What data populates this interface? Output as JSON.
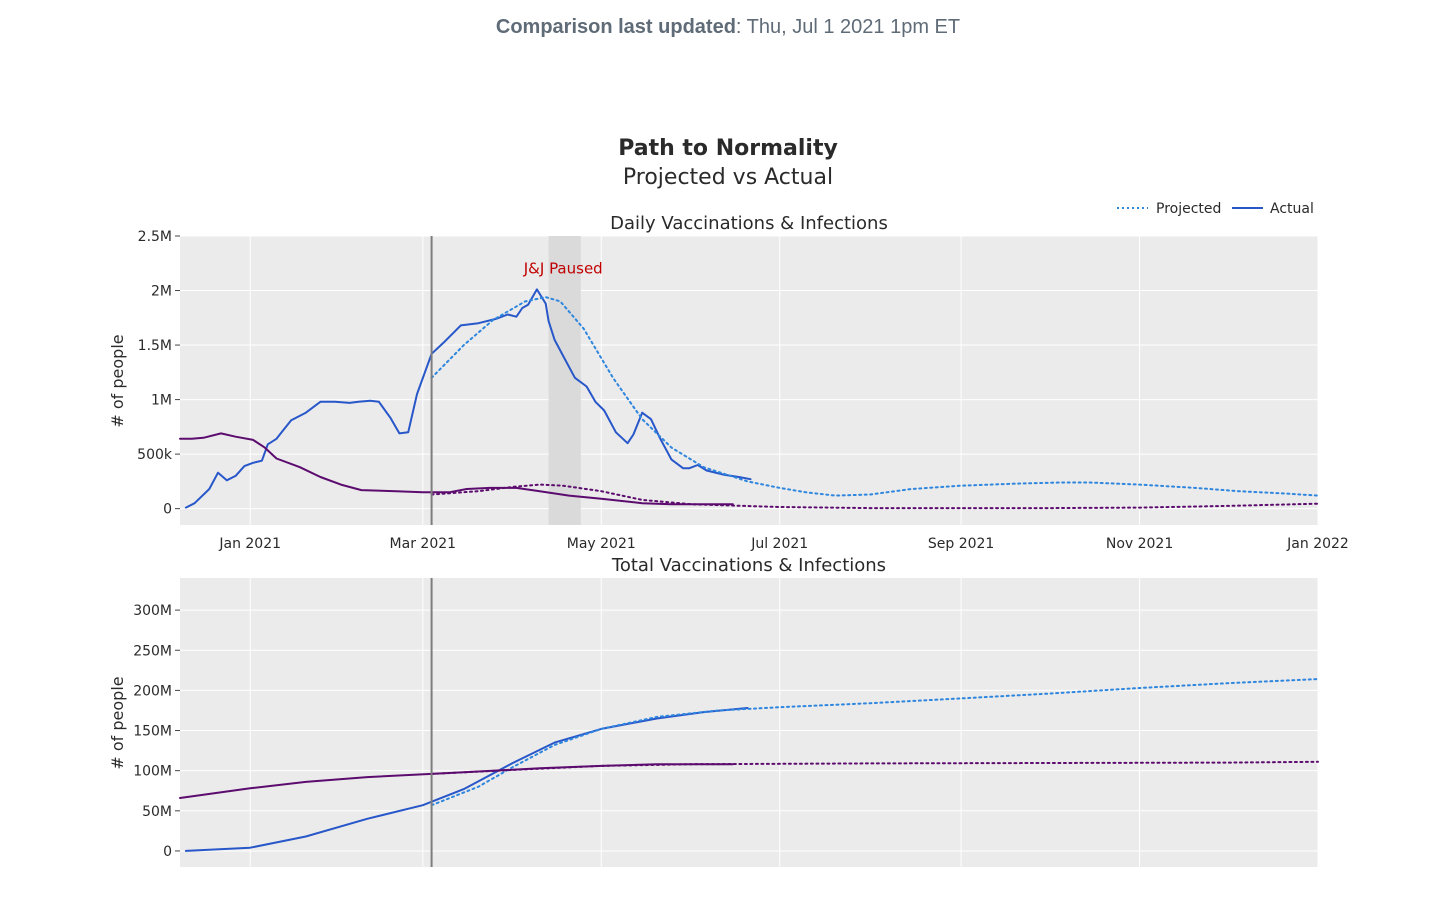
{
  "header": {
    "updated_label": "Comparison last updated",
    "updated_value": ": Thu, Jul 1 2021 1pm ET"
  },
  "figure": {
    "title": "Path to Normality",
    "subtitle": "Projected vs Actual"
  },
  "legend": {
    "projected": "Projected",
    "actual": "Actual"
  },
  "colors": {
    "vacc_actual": "#2857c9",
    "vacc_projected": "#2e86de",
    "infections": "#5c0b6e",
    "plot_bg": "#ebebeb",
    "grid": "#ffffff",
    "annotation": "#c00000"
  },
  "chart_data": [
    {
      "type": "line",
      "title": "Daily Vaccinations & Infections",
      "ylabel": "# of people",
      "xlim": [
        "2020-12-08",
        "2022-01-01"
      ],
      "ylim": [
        -150000,
        2500000
      ],
      "yticks": [
        0,
        500000,
        1000000,
        1500000,
        2000000,
        2500000
      ],
      "ytick_labels": [
        "0",
        "500k",
        "1M",
        "1.5M",
        "2M",
        "2.5M"
      ],
      "xticks": [
        "2021-01-01",
        "2021-03-01",
        "2021-05-01",
        "2021-07-01",
        "2021-09-01",
        "2021-11-01",
        "2022-01-01"
      ],
      "xtick_labels": [
        "Jan 2021",
        "Mar 2021",
        "May 2021",
        "Jul 2021",
        "Sep 2021",
        "Nov 2021",
        "Jan 2022"
      ],
      "vline": "2021-03-04",
      "shaded_region": [
        "2021-04-13",
        "2021-04-24"
      ],
      "annotation": {
        "text": "J&J Paused",
        "x": "2021-04-18",
        "y": 2200000
      },
      "series": [
        {
          "name": "Vaccinations (Actual)",
          "style": "solid",
          "color_key": "vacc_actual",
          "x": [
            "2020-12-10",
            "2020-12-13",
            "2020-12-18",
            "2020-12-21",
            "2020-12-24",
            "2020-12-27",
            "2020-12-30",
            "2021-01-02",
            "2021-01-05",
            "2021-01-07",
            "2021-01-10",
            "2021-01-12",
            "2021-01-15",
            "2021-01-20",
            "2021-01-25",
            "2021-01-30",
            "2021-02-04",
            "2021-02-07",
            "2021-02-11",
            "2021-02-14",
            "2021-02-18",
            "2021-02-21",
            "2021-02-24",
            "2021-02-27",
            "2021-03-04",
            "2021-03-08",
            "2021-03-14",
            "2021-03-20",
            "2021-03-26",
            "2021-03-30",
            "2021-04-02",
            "2021-04-04",
            "2021-04-06",
            "2021-04-09",
            "2021-04-12",
            "2021-04-13",
            "2021-04-15",
            "2021-04-18",
            "2021-04-22",
            "2021-04-26",
            "2021-04-29",
            "2021-05-02",
            "2021-05-06",
            "2021-05-10",
            "2021-05-12",
            "2021-05-15",
            "2021-05-18",
            "2021-05-21",
            "2021-05-25",
            "2021-05-29",
            "2021-05-31",
            "2021-06-03",
            "2021-06-06",
            "2021-06-12",
            "2021-06-17",
            "2021-06-21"
          ],
          "y": [
            10000,
            50000,
            180000,
            330000,
            260000,
            300000,
            390000,
            420000,
            440000,
            590000,
            640000,
            710000,
            810000,
            880000,
            980000,
            980000,
            970000,
            980000,
            990000,
            980000,
            830000,
            690000,
            700000,
            1050000,
            1420000,
            1520000,
            1680000,
            1700000,
            1740000,
            1780000,
            1760000,
            1840000,
            1870000,
            2010000,
            1880000,
            1720000,
            1550000,
            1400000,
            1200000,
            1120000,
            980000,
            900000,
            700000,
            600000,
            680000,
            880000,
            820000,
            650000,
            450000,
            370000,
            370000,
            400000,
            350000,
            310000,
            290000,
            270000
          ]
        },
        {
          "name": "Vaccinations (Projected)",
          "style": "dot",
          "color_key": "vacc_projected",
          "x": [
            "2021-03-04",
            "2021-03-15",
            "2021-03-25",
            "2021-04-05",
            "2021-04-12",
            "2021-04-17",
            "2021-04-25",
            "2021-05-05",
            "2021-05-15",
            "2021-05-25",
            "2021-06-05",
            "2021-06-20",
            "2021-07-01",
            "2021-07-10",
            "2021-07-20",
            "2021-08-01",
            "2021-08-15",
            "2021-09-01",
            "2021-09-20",
            "2021-10-05",
            "2021-10-15",
            "2021-11-01",
            "2021-11-20",
            "2021-12-05",
            "2021-12-20",
            "2022-01-01"
          ],
          "y": [
            1200000,
            1500000,
            1730000,
            1900000,
            1940000,
            1900000,
            1650000,
            1200000,
            820000,
            560000,
            380000,
            250000,
            190000,
            150000,
            120000,
            130000,
            180000,
            210000,
            230000,
            240000,
            240000,
            220000,
            190000,
            160000,
            140000,
            120000
          ]
        },
        {
          "name": "Infections (Actual)",
          "style": "solid",
          "color_key": "infections",
          "x": [
            "2020-12-08",
            "2020-12-12",
            "2020-12-16",
            "2020-12-22",
            "2020-12-27",
            "2021-01-02",
            "2021-01-06",
            "2021-01-10",
            "2021-01-18",
            "2021-01-25",
            "2021-02-01",
            "2021-02-08",
            "2021-02-20",
            "2021-03-01",
            "2021-03-10",
            "2021-03-16",
            "2021-03-24",
            "2021-04-02",
            "2021-04-10",
            "2021-04-20",
            "2021-05-01",
            "2021-05-15",
            "2021-05-25",
            "2021-06-06",
            "2021-06-15"
          ],
          "y": [
            640000,
            640000,
            650000,
            690000,
            660000,
            630000,
            560000,
            460000,
            380000,
            290000,
            220000,
            170000,
            160000,
            150000,
            150000,
            180000,
            190000,
            190000,
            160000,
            120000,
            90000,
            50000,
            40000,
            40000,
            40000
          ]
        },
        {
          "name": "Infections (Projected)",
          "style": "dot",
          "color_key": "infections",
          "x": [
            "2021-03-04",
            "2021-03-20",
            "2021-04-01",
            "2021-04-10",
            "2021-04-18",
            "2021-05-01",
            "2021-05-15",
            "2021-06-01",
            "2021-07-01",
            "2021-08-01",
            "2021-09-01",
            "2021-10-01",
            "2021-11-01",
            "2021-12-01",
            "2022-01-01"
          ],
          "y": [
            130000,
            160000,
            200000,
            220000,
            210000,
            160000,
            80000,
            40000,
            15000,
            5000,
            5000,
            5000,
            10000,
            25000,
            45000
          ]
        }
      ]
    },
    {
      "type": "line",
      "title": "Total Vaccinations & Infections",
      "ylabel": "# of people",
      "xlim": [
        "2020-12-08",
        "2022-01-01"
      ],
      "ylim": [
        -20000000,
        340000000
      ],
      "yticks": [
        0,
        50000000,
        100000000,
        150000000,
        200000000,
        250000000,
        300000000
      ],
      "ytick_labels": [
        "0",
        "50M",
        "100M",
        "150M",
        "200M",
        "250M",
        "300M"
      ],
      "vline": "2021-03-04",
      "series": [
        {
          "name": "Total Vaccinations (Actual)",
          "style": "solid",
          "color_key": "vacc_actual",
          "x": [
            "2020-12-10",
            "2021-01-01",
            "2021-01-20",
            "2021-02-10",
            "2021-03-01",
            "2021-03-15",
            "2021-04-01",
            "2021-04-15",
            "2021-05-01",
            "2021-05-20",
            "2021-06-05",
            "2021-06-20"
          ],
          "y": [
            0,
            4000000,
            18000000,
            40000000,
            57000000,
            77000000,
            110000000,
            135000000,
            152000000,
            165000000,
            173000000,
            178000000
          ]
        },
        {
          "name": "Total Vaccinations (Projected)",
          "style": "dot",
          "color_key": "vacc_projected",
          "x": [
            "2021-03-04",
            "2021-03-20",
            "2021-04-01",
            "2021-04-15",
            "2021-05-01",
            "2021-05-20",
            "2021-06-10",
            "2021-07-01",
            "2021-08-01",
            "2021-09-01",
            "2021-10-01",
            "2021-11-01",
            "2021-12-01",
            "2022-01-01"
          ],
          "y": [
            57000000,
            80000000,
            105000000,
            132000000,
            152000000,
            167000000,
            175000000,
            179000000,
            184000000,
            190000000,
            196000000,
            203000000,
            209000000,
            214000000
          ]
        },
        {
          "name": "Total Infections (Actual)",
          "style": "solid",
          "color_key": "infections",
          "x": [
            "2020-12-08",
            "2021-01-01",
            "2021-01-20",
            "2021-02-10",
            "2021-03-04",
            "2021-03-20",
            "2021-04-10",
            "2021-05-01",
            "2021-05-20",
            "2021-06-15"
          ],
          "y": [
            66000000,
            78000000,
            86000000,
            92000000,
            96000000,
            99000000,
            103000000,
            106000000,
            108000000,
            108000000
          ]
        },
        {
          "name": "Total Infections (Projected)",
          "style": "dot",
          "color_key": "infections",
          "x": [
            "2021-03-04",
            "2021-04-01",
            "2021-05-01",
            "2021-06-01",
            "2021-08-01",
            "2021-10-01",
            "2021-12-01",
            "2022-01-01"
          ],
          "y": [
            96000000,
            101000000,
            106000000,
            108000000,
            109000000,
            109500000,
            110000000,
            111000000
          ]
        }
      ]
    }
  ]
}
